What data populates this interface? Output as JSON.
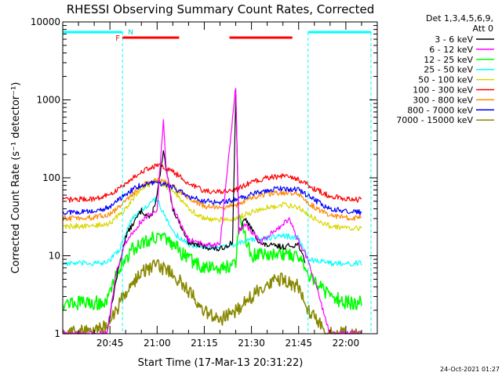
{
  "chart_data": {
    "type": "line",
    "title": "RHESSI Observing Summary Count Rates, Corrected",
    "xlabel": "Start Time (17-Mar-13 20:31:22)",
    "ylabel": "Corrected Count Rate (s⁻¹ detector⁻¹)",
    "yscale": "log",
    "ylim": [
      1,
      10000
    ],
    "xlim_minutes": [
      20.0,
      21.5
    ],
    "x_ticks": [
      "20:45",
      "21:00",
      "21:15",
      "21:30",
      "21:45",
      "22:00"
    ],
    "y_ticks": [
      "1",
      "10",
      "100",
      "1000",
      "10000"
    ],
    "legend": {
      "placement": "right",
      "header": [
        "Det 1,3,4,5,6,9,",
        "Att 0"
      ],
      "entries": [
        {
          "label": "3 - 6 keV",
          "color": "#000000"
        },
        {
          "label": "6 - 12 keV",
          "color": "#ff00ff"
        },
        {
          "label": "12 - 25 keV",
          "color": "#00ff00"
        },
        {
          "label": "25 - 50 keV",
          "color": "#00ffff"
        },
        {
          "label": "50 - 100 keV",
          "color": "#d8d800"
        },
        {
          "label": "100 - 300 keV",
          "color": "#ff0000"
        },
        {
          "label": "300 - 800 keV",
          "color": "#ff8800"
        },
        {
          "label": "800 - 7000 keV",
          "color": "#0000ff"
        },
        {
          "label": "7000 - 15000 keV",
          "color": "#888800"
        }
      ]
    },
    "annotations": {
      "night_marker": "N",
      "flare_marker": "F",
      "night_intervals": [
        [
          "20:30",
          "20:49"
        ],
        [
          "21:48",
          "22:08"
        ]
      ],
      "flare_intervals": [
        [
          "20:49",
          "21:07"
        ],
        [
          "21:23",
          "21:24"
        ],
        [
          "21:24",
          "21:43"
        ]
      ]
    },
    "series": [
      {
        "label": "3 - 6 keV",
        "color": "#000000",
        "x": [
          "20:44",
          "20:47",
          "20:50",
          "20:55",
          "20:58",
          "21:00",
          "21:02",
          "21:05",
          "21:10",
          "21:15",
          "21:20",
          "21:24",
          "21:25",
          "21:26",
          "21:28",
          "21:33",
          "21:40",
          "21:45",
          "21:47"
        ],
        "y": [
          1,
          5,
          18,
          38,
          30,
          60,
          210,
          40,
          15,
          13,
          12,
          15,
          1100,
          20,
          30,
          14,
          13,
          14,
          8
        ]
      },
      {
        "label": "6 - 12 keV",
        "color": "#ff00ff",
        "x": [
          "20:30",
          "20:44",
          "20:47",
          "20:50",
          "20:55",
          "21:00",
          "21:02",
          "21:03",
          "21:05",
          "21:10",
          "21:15",
          "21:20",
          "21:25",
          "21:26",
          "21:28",
          "21:33",
          "21:42",
          "21:45",
          "21:48",
          "21:55",
          "22:00",
          "22:05"
        ],
        "y": [
          1,
          1,
          6,
          15,
          28,
          40,
          550,
          120,
          40,
          16,
          14,
          14,
          1500,
          20,
          25,
          15,
          30,
          15,
          9,
          1,
          1,
          1
        ]
      },
      {
        "label": "12 - 25 keV",
        "color": "#00ff00",
        "x": [
          "20:30",
          "20:44",
          "20:47",
          "20:52",
          "20:57",
          "21:00",
          "21:05",
          "21:10",
          "21:15",
          "21:20",
          "21:25",
          "21:26",
          "21:30",
          "21:38",
          "21:45",
          "21:48",
          "21:55",
          "22:00",
          "22:05"
        ],
        "y": [
          2.5,
          2.5,
          6,
          12,
          16,
          18,
          14,
          9,
          7,
          7,
          8,
          30,
          10,
          11,
          10,
          6,
          3,
          2.5,
          2.5
        ]
      },
      {
        "label": "25 - 50 keV",
        "color": "#00ffff",
        "x": [
          "20:30",
          "20:44",
          "20:48",
          "20:52",
          "20:57",
          "21:00",
          "21:02",
          "21:05",
          "21:10",
          "21:15",
          "21:20",
          "21:25",
          "21:30",
          "21:35",
          "21:40",
          "21:45",
          "21:48",
          "21:55",
          "22:00",
          "22:05"
        ],
        "y": [
          8,
          8,
          12,
          30,
          45,
          55,
          35,
          20,
          14,
          13,
          13,
          14,
          16,
          17,
          18,
          17,
          9,
          8,
          8,
          8
        ]
      },
      {
        "label": "50 - 100 keV",
        "color": "#d8d800",
        "x": [
          "20:30",
          "20:40",
          "20:45",
          "20:50",
          "20:55",
          "21:00",
          "21:05",
          "21:10",
          "21:15",
          "21:20",
          "21:25",
          "21:30",
          "21:35",
          "21:40",
          "21:45",
          "21:50",
          "21:55",
          "22:00",
          "22:05"
        ],
        "y": [
          24,
          24,
          26,
          40,
          75,
          90,
          70,
          40,
          30,
          29,
          30,
          36,
          42,
          45,
          42,
          30,
          24,
          23,
          22
        ]
      },
      {
        "label": "100 - 300 keV",
        "color": "#ff0000",
        "x": [
          "20:30",
          "20:40",
          "20:45",
          "20:50",
          "20:55",
          "21:00",
          "21:05",
          "21:10",
          "21:15",
          "21:20",
          "21:25",
          "21:30",
          "21:35",
          "21:40",
          "21:45",
          "21:50",
          "21:55",
          "22:00",
          "22:05"
        ],
        "y": [
          52,
          54,
          60,
          85,
          120,
          145,
          120,
          85,
          68,
          66,
          70,
          88,
          100,
          105,
          95,
          72,
          58,
          54,
          52
        ]
      },
      {
        "label": "300 - 800 keV",
        "color": "#ff8800",
        "x": [
          "20:30",
          "20:40",
          "20:45",
          "20:50",
          "20:55",
          "21:00",
          "21:05",
          "21:10",
          "21:15",
          "21:20",
          "21:25",
          "21:30",
          "21:35",
          "21:40",
          "21:45",
          "21:50",
          "21:55",
          "22:00",
          "22:05"
        ],
        "y": [
          30,
          31,
          34,
          50,
          80,
          95,
          80,
          55,
          43,
          42,
          44,
          55,
          62,
          65,
          60,
          42,
          33,
          31,
          30
        ]
      },
      {
        "label": "800 - 7000 keV",
        "color": "#0000ff",
        "x": [
          "20:30",
          "20:40",
          "20:45",
          "20:50",
          "20:55",
          "21:00",
          "21:05",
          "21:10",
          "21:15",
          "21:20",
          "21:25",
          "21:30",
          "21:35",
          "21:40",
          "21:45",
          "21:50",
          "21:55",
          "22:00",
          "22:05"
        ],
        "y": [
          36,
          37,
          42,
          62,
          82,
          88,
          76,
          58,
          50,
          49,
          52,
          62,
          70,
          74,
          70,
          52,
          40,
          37,
          36
        ]
      },
      {
        "label": "7000 - 15000 keV",
        "color": "#888800",
        "x": [
          "20:30",
          "20:44",
          "20:47",
          "20:50",
          "20:55",
          "21:00",
          "21:05",
          "21:10",
          "21:15",
          "21:20",
          "21:25",
          "21:30",
          "21:35",
          "21:40",
          "21:45",
          "21:48",
          "21:55",
          "22:00",
          "22:05"
        ],
        "y": [
          1,
          1.2,
          2,
          3.5,
          6,
          7.5,
          6,
          3.5,
          2,
          1.5,
          2,
          3,
          4.5,
          5,
          4,
          2,
          1,
          1,
          1
        ]
      }
    ]
  },
  "footer": {
    "date_stamp": "24-Oct-2021 01:27"
  }
}
